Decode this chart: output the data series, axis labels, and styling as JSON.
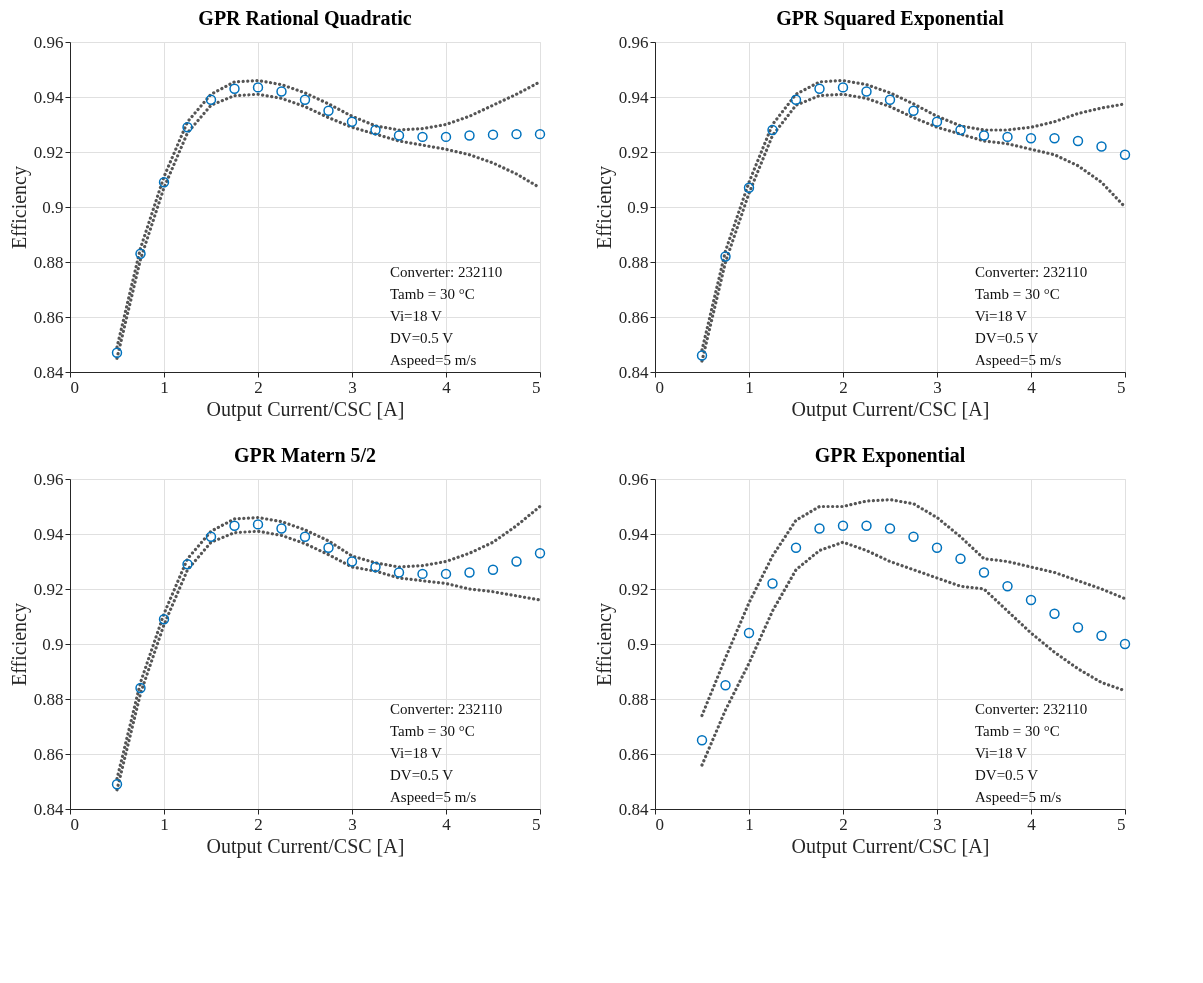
{
  "chart_data": [
    {
      "type": "scatter",
      "title": "GPR Rational Quadratic",
      "xlabel": "Output Current/CSC [A]",
      "ylabel": "Efficiency",
      "marker": "circle",
      "grid": true,
      "x": [
        0.5,
        0.75,
        1.0,
        1.25,
        1.5,
        1.75,
        2.0,
        2.25,
        2.5,
        2.75,
        3.0,
        3.25,
        3.5,
        3.75,
        4.0,
        4.25,
        4.5,
        4.75,
        5.0
      ],
      "xlim": [
        0,
        5
      ],
      "xticks": [
        0,
        1,
        2,
        3,
        4,
        5
      ],
      "ylim": [
        0.84,
        0.96
      ],
      "yticks": [
        0.84,
        0.86,
        0.88,
        0.9,
        0.92,
        0.94,
        0.96
      ],
      "series": [
        {
          "type": "line",
          "line_style": "dotted",
          "marker": "none",
          "color": "#555555",
          "values": [
            0.849,
            0.885,
            0.911,
            0.931,
            0.941,
            0.9455,
            0.946,
            0.9445,
            0.9415,
            0.9375,
            0.933,
            0.9295,
            0.928,
            0.9285,
            0.93,
            0.933,
            0.937,
            0.941,
            0.9455
          ]
        },
        {
          "type": "line",
          "line_style": "dotted",
          "marker": "none",
          "color": "#555555",
          "values": [
            0.845,
            0.881,
            0.907,
            0.927,
            0.937,
            0.9405,
            0.941,
            0.9395,
            0.9365,
            0.9325,
            0.929,
            0.9265,
            0.924,
            0.9225,
            0.921,
            0.919,
            0.916,
            0.912,
            0.907
          ]
        },
        {
          "color": "#0072bd",
          "values": [
            0.847,
            0.883,
            0.909,
            0.929,
            0.939,
            0.943,
            0.9435,
            0.942,
            0.939,
            0.935,
            0.931,
            0.928,
            0.926,
            0.9255,
            0.9255,
            0.926,
            0.9263,
            0.9265,
            0.9265
          ]
        }
      ],
      "annotations": [
        "Converter: 232110",
        "Tamb = 30 °C",
        "Vi=18 V",
        "DV=0.5 V",
        "Aspeed=5 m/s"
      ]
    },
    {
      "type": "scatter",
      "title": "GPR Squared Exponential",
      "xlabel": "Output Current/CSC [A]",
      "ylabel": "Efficiency",
      "marker": "circle",
      "grid": true,
      "x": [
        0.5,
        0.75,
        1.0,
        1.25,
        1.5,
        1.75,
        2.0,
        2.25,
        2.5,
        2.75,
        3.0,
        3.25,
        3.5,
        3.75,
        4.0,
        4.25,
        4.5,
        4.75,
        5.0
      ],
      "xlim": [
        0,
        5
      ],
      "xticks": [
        0,
        1,
        2,
        3,
        4,
        5
      ],
      "ylim": [
        0.84,
        0.96
      ],
      "yticks": [
        0.84,
        0.86,
        0.88,
        0.9,
        0.92,
        0.94,
        0.96
      ],
      "series": [
        {
          "type": "line",
          "line_style": "dotted",
          "marker": "none",
          "color": "#555555",
          "values": [
            0.848,
            0.884,
            0.909,
            0.93,
            0.941,
            0.9455,
            0.946,
            0.9445,
            0.9415,
            0.9375,
            0.933,
            0.9295,
            0.928,
            0.928,
            0.929,
            0.931,
            0.934,
            0.936,
            0.9375
          ]
        },
        {
          "type": "line",
          "line_style": "dotted",
          "marker": "none",
          "color": "#555555",
          "values": [
            0.844,
            0.88,
            0.905,
            0.926,
            0.937,
            0.9405,
            0.941,
            0.9395,
            0.9365,
            0.9325,
            0.929,
            0.9265,
            0.924,
            0.923,
            0.921,
            0.919,
            0.915,
            0.909,
            0.9
          ]
        },
        {
          "color": "#0072bd",
          "values": [
            0.846,
            0.882,
            0.907,
            0.928,
            0.939,
            0.943,
            0.9435,
            0.942,
            0.939,
            0.935,
            0.931,
            0.928,
            0.926,
            0.9255,
            0.925,
            0.925,
            0.924,
            0.922,
            0.919
          ]
        }
      ],
      "annotations": [
        "Converter: 232110",
        "Tamb = 30 °C",
        "Vi=18 V",
        "DV=0.5 V",
        "Aspeed=5 m/s"
      ]
    },
    {
      "type": "scatter",
      "title": "GPR Matern 5/2",
      "xlabel": "Output Current/CSC [A]",
      "ylabel": "Efficiency",
      "marker": "circle",
      "grid": true,
      "x": [
        0.5,
        0.75,
        1.0,
        1.25,
        1.5,
        1.75,
        2.0,
        2.25,
        2.5,
        2.75,
        3.0,
        3.25,
        3.5,
        3.75,
        4.0,
        4.25,
        4.5,
        4.75,
        5.0
      ],
      "xlim": [
        0,
        5
      ],
      "xticks": [
        0,
        1,
        2,
        3,
        4,
        5
      ],
      "ylim": [
        0.84,
        0.96
      ],
      "yticks": [
        0.84,
        0.86,
        0.88,
        0.9,
        0.92,
        0.94,
        0.96
      ],
      "series": [
        {
          "type": "line",
          "line_style": "dotted",
          "marker": "none",
          "color": "#555555",
          "values": [
            0.851,
            0.886,
            0.911,
            0.931,
            0.941,
            0.9455,
            0.946,
            0.9445,
            0.9415,
            0.9375,
            0.932,
            0.9295,
            0.928,
            0.9285,
            0.93,
            0.933,
            0.937,
            0.943,
            0.95
          ]
        },
        {
          "type": "line",
          "line_style": "dotted",
          "marker": "none",
          "color": "#555555",
          "values": [
            0.847,
            0.882,
            0.907,
            0.927,
            0.937,
            0.9405,
            0.941,
            0.9395,
            0.9365,
            0.9325,
            0.928,
            0.9265,
            0.924,
            0.923,
            0.922,
            0.92,
            0.919,
            0.9175,
            0.916
          ]
        },
        {
          "color": "#0072bd",
          "values": [
            0.849,
            0.884,
            0.909,
            0.929,
            0.939,
            0.943,
            0.9435,
            0.942,
            0.939,
            0.935,
            0.93,
            0.928,
            0.926,
            0.9255,
            0.9255,
            0.926,
            0.927,
            0.93,
            0.933
          ]
        }
      ],
      "annotations": [
        "Converter: 232110",
        "Tamb = 30 °C",
        "Vi=18 V",
        "DV=0.5 V",
        "Aspeed=5 m/s"
      ]
    },
    {
      "type": "scatter",
      "title": "GPR Exponential",
      "xlabel": "Output Current/CSC [A]",
      "ylabel": "Efficiency",
      "marker": "circle",
      "grid": true,
      "x": [
        0.5,
        0.75,
        1.0,
        1.25,
        1.5,
        1.75,
        2.0,
        2.25,
        2.5,
        2.75,
        3.0,
        3.25,
        3.5,
        3.75,
        4.0,
        4.25,
        4.5,
        4.75,
        5.0
      ],
      "xlim": [
        0,
        5
      ],
      "xticks": [
        0,
        1,
        2,
        3,
        4,
        5
      ],
      "ylim": [
        0.84,
        0.96
      ],
      "yticks": [
        0.84,
        0.86,
        0.88,
        0.9,
        0.92,
        0.94,
        0.96
      ],
      "series": [
        {
          "type": "line",
          "line_style": "dotted",
          "marker": "none",
          "color": "#555555",
          "values": [
            0.874,
            0.895,
            0.915,
            0.932,
            0.945,
            0.95,
            0.95,
            0.952,
            0.9525,
            0.951,
            0.946,
            0.939,
            0.931,
            0.93,
            0.928,
            0.926,
            0.923,
            0.92,
            0.9165
          ]
        },
        {
          "type": "line",
          "line_style": "dotted",
          "marker": "none",
          "color": "#555555",
          "values": [
            0.856,
            0.876,
            0.893,
            0.912,
            0.927,
            0.934,
            0.937,
            0.934,
            0.93,
            0.927,
            0.924,
            0.921,
            0.92,
            0.912,
            0.904,
            0.897,
            0.891,
            0.886,
            0.883
          ]
        },
        {
          "color": "#0072bd",
          "values": [
            0.865,
            0.885,
            0.904,
            0.922,
            0.935,
            0.942,
            0.943,
            0.943,
            0.942,
            0.939,
            0.935,
            0.931,
            0.926,
            0.921,
            0.916,
            0.911,
            0.906,
            0.903,
            0.9
          ]
        }
      ],
      "annotations": [
        "Converter: 232110",
        "Tamb = 30 °C",
        "Vi=18 V",
        "DV=0.5 V",
        "Aspeed=5 m/s"
      ]
    }
  ]
}
